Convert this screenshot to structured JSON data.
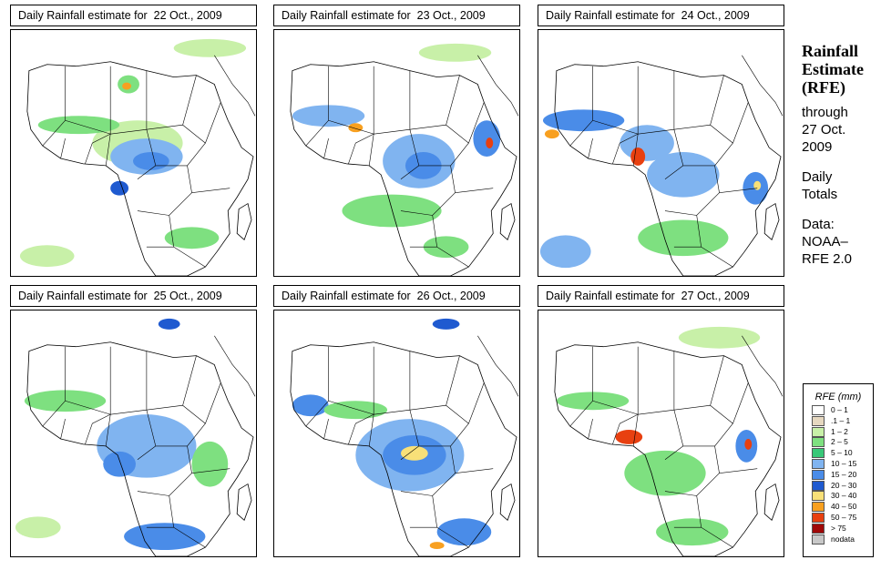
{
  "panels": [
    {
      "title": "Daily Rainfall estimate for  22 Oct., 2009",
      "date": "22 Oct., 2009"
    },
    {
      "title": "Daily Rainfall estimate for  23 Oct., 2009",
      "date": "23 Oct., 2009"
    },
    {
      "title": "Daily Rainfall estimate for  24 Oct., 2009",
      "date": "24 Oct., 2009"
    },
    {
      "title": "Daily Rainfall estimate for  25 Oct., 2009",
      "date": "25 Oct., 2009"
    },
    {
      "title": "Daily Rainfall estimate for  26 Oct., 2009",
      "date": "26 Oct., 2009"
    },
    {
      "title": "Daily Rainfall estimate for  27 Oct., 2009",
      "date": "27 Oct., 2009"
    }
  ],
  "side": {
    "heading_line1": "Rainfall",
    "heading_line2": "Estimate",
    "heading_line3": "(RFE)",
    "through_line1": "through",
    "through_line2": "27 Oct.",
    "through_line3": "2009",
    "totals_line1": "Daily",
    "totals_line2": "Totals",
    "data_line1": "Data:",
    "data_line2": "NOAA–",
    "data_line3": "RFE 2.0"
  },
  "legend": {
    "title": "RFE (mm)",
    "items": [
      {
        "label": "0 – 1",
        "color": "#ffffff"
      },
      {
        "label": ".1 – 1",
        "color": "#e6d8c0"
      },
      {
        "label": "1 – 2",
        "color": "#c8f0a8"
      },
      {
        "label": "2 – 5",
        "color": "#7ee080"
      },
      {
        "label": "5 – 10",
        "color": "#38c878"
      },
      {
        "label": "10 – 15",
        "color": "#80b4f0"
      },
      {
        "label": "15 – 20",
        "color": "#4a8ce8"
      },
      {
        "label": "20 – 30",
        "color": "#1f5ad0"
      },
      {
        "label": "30 – 40",
        "color": "#f8e078"
      },
      {
        "label": "40 – 50",
        "color": "#f8a020"
      },
      {
        "label": "50 – 75",
        "color": "#e84010"
      },
      {
        "label": "> 75",
        "color": "#a00808"
      },
      {
        "label": "nodata",
        "color": "#c8c8c8"
      }
    ]
  }
}
